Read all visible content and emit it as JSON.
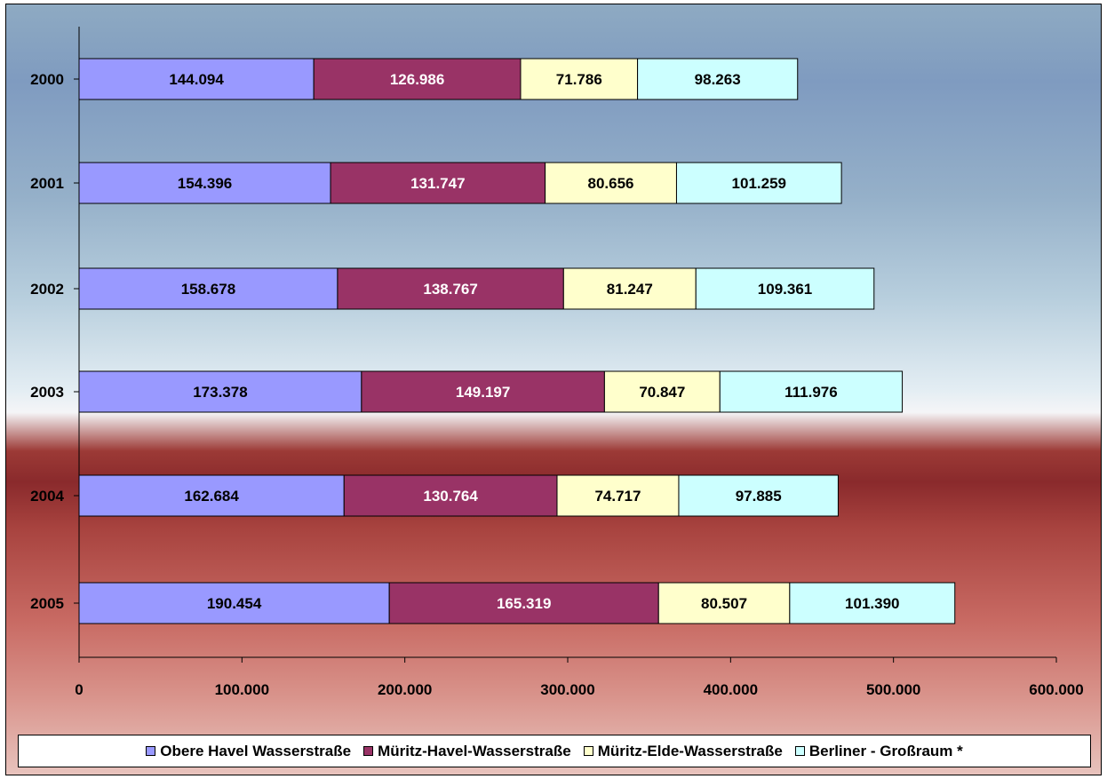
{
  "chart_data": {
    "type": "bar",
    "orientation": "horizontal",
    "stacked": true,
    "categories": [
      "2000",
      "2001",
      "2002",
      "2003",
      "2004",
      "2005"
    ],
    "series": [
      {
        "name": "Obere Havel Wasserstraße",
        "color": "#9999ff",
        "values": [
          144094,
          154396,
          158678,
          173378,
          162684,
          190454
        ],
        "labels": [
          "144.094",
          "154.396",
          "158.678",
          "173.378",
          "162.684",
          "190.454"
        ]
      },
      {
        "name": "Müritz-Havel-Wasserstraße",
        "color": "#993366",
        "values": [
          126986,
          131747,
          138767,
          149197,
          130764,
          165319
        ],
        "labels": [
          "126.986",
          "131.747",
          "138.767",
          "149.197",
          "130.764",
          "165.319"
        ]
      },
      {
        "name": "Müritz-Elde-Wasserstraße",
        "color": "#ffffcc",
        "values": [
          71786,
          80656,
          81247,
          70847,
          74717,
          80507
        ],
        "labels": [
          "71.786",
          "80.656",
          "81.247",
          "70.847",
          "74.717",
          "80.507"
        ]
      },
      {
        "name": "Berliner - Großraum *",
        "color": "#ccffff",
        "values": [
          98263,
          101259,
          109361,
          111976,
          97885,
          101390
        ],
        "labels": [
          "98.263",
          "101.259",
          "109.361",
          "111.976",
          "97.885",
          "101.390"
        ]
      }
    ],
    "xlim": [
      0,
      600000
    ],
    "xticks": [
      0,
      100000,
      200000,
      300000,
      400000,
      500000,
      600000
    ],
    "xtick_labels": [
      "0",
      "100.000",
      "200.000",
      "300.000",
      "400.000",
      "500.000",
      "600.000"
    ],
    "title": "",
    "xlabel": "",
    "ylabel": "",
    "grid": false,
    "legend_position": "bottom"
  }
}
